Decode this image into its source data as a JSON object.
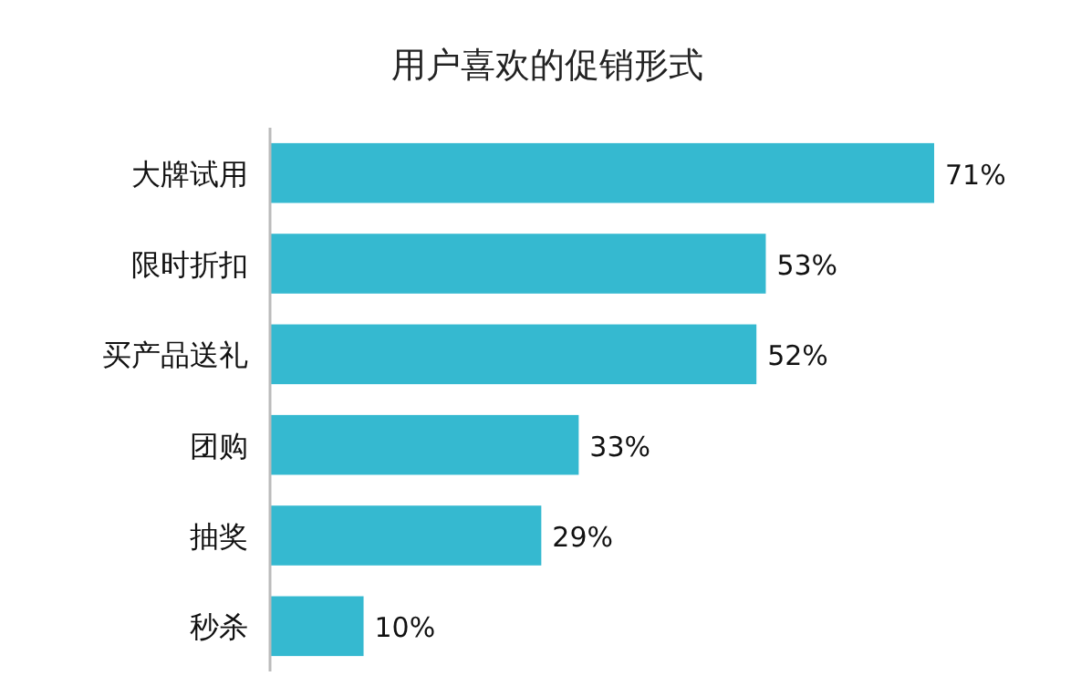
{
  "chart_data": {
    "type": "bar",
    "orientation": "horizontal",
    "title": "用户喜欢的促销形式",
    "categories": [
      "大牌试用",
      "限时折扣",
      "买产品送礼",
      "团购",
      "抽奖",
      "秒杀"
    ],
    "values": [
      71,
      53,
      52,
      33,
      29,
      10
    ],
    "value_labels": [
      "71%",
      "53%",
      "52%",
      "33%",
      "29%",
      "10%"
    ],
    "color": "#35b9d0",
    "xlim": [
      0,
      71
    ],
    "tick_labels": "y"
  }
}
